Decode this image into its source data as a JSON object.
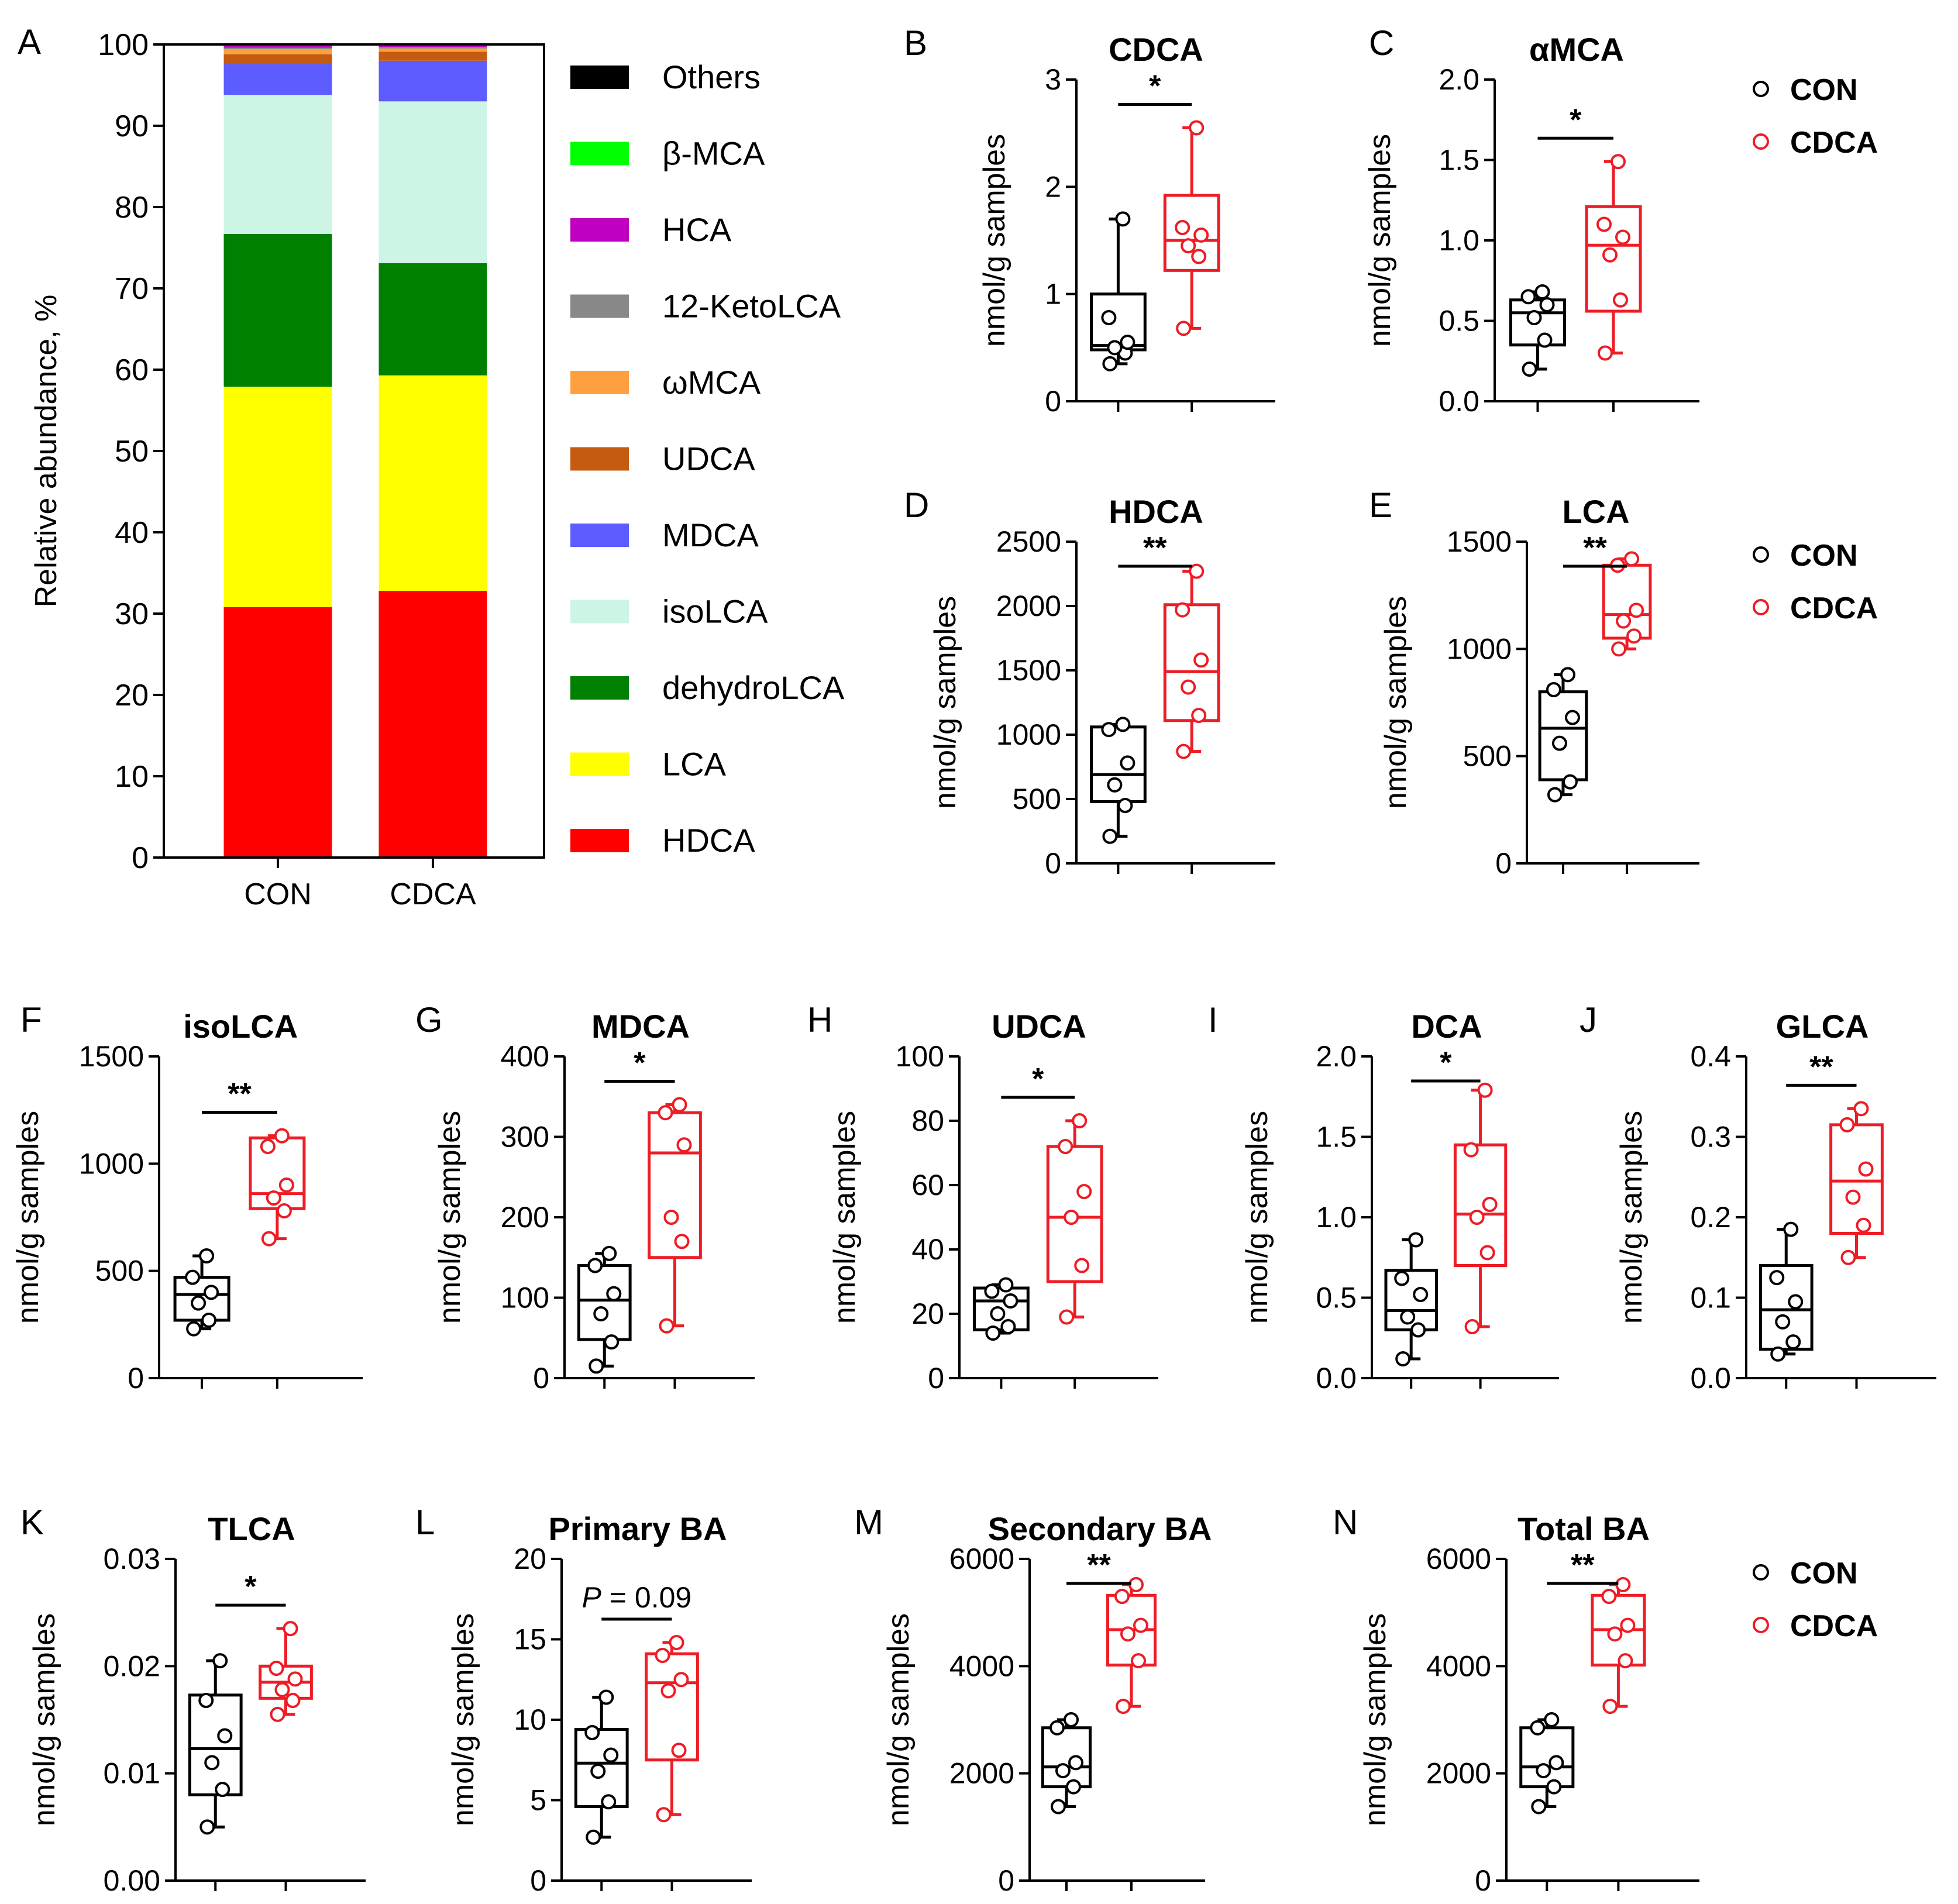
{
  "figure": {
    "ylabel_common": "nmol/g samples",
    "group_names": [
      "CON",
      "CDCA"
    ],
    "colors": {
      "CON": "#000000",
      "CDCA": "#ee1c25"
    }
  },
  "chart_data": [
    {
      "panel": "A",
      "type": "bar",
      "stacked": true,
      "title": "",
      "ylabel": "Relative abundance, %",
      "ylim": [
        0,
        100
      ],
      "yticks": [
        0,
        10,
        20,
        30,
        40,
        50,
        60,
        70,
        80,
        90,
        100
      ],
      "categories": [
        "CON",
        "CDCA"
      ],
      "series": [
        {
          "name": "HDCA",
          "color": "#ff0000",
          "values": [
            30.8,
            32.8
          ]
        },
        {
          "name": "LCA",
          "color": "#ffff00",
          "values": [
            27.1,
            26.5
          ]
        },
        {
          "name": "dehydroLCA",
          "color": "#008000",
          "values": [
            18.8,
            13.8
          ]
        },
        {
          "name": "isoLCA",
          "color": "#ccf5e6",
          "values": [
            17.1,
            19.9
          ]
        },
        {
          "name": "MDCA",
          "color": "#5c5cff",
          "values": [
            3.8,
            5.0
          ]
        },
        {
          "name": "UDCA",
          "color": "#c55a11",
          "values": [
            1.2,
            1.1
          ]
        },
        {
          "name": "ωMCA",
          "color": "#ffa040",
          "values": [
            0.6,
            0.4
          ]
        },
        {
          "name": "12-KetoLCA",
          "color": "#888888",
          "values": [
            0.2,
            0.2
          ]
        },
        {
          "name": "HCA",
          "color": "#c000c0",
          "values": [
            0.2,
            0.1
          ]
        },
        {
          "name": "β-MCA",
          "color": "#00ff00",
          "values": [
            0.1,
            0.1
          ]
        },
        {
          "name": "Others",
          "color": "#000000",
          "values": [
            0.1,
            0.1
          ]
        }
      ],
      "legend_order": [
        "Others",
        "β-MCA",
        "HCA",
        "12-KetoLCA",
        "ωMCA",
        "UDCA",
        "MDCA",
        "isoLCA",
        "dehydroLCA",
        "LCA",
        "HDCA"
      ]
    },
    {
      "panel": "B",
      "type": "box",
      "title": "CDCA",
      "ylabel": "nmol/g samples",
      "ylim": [
        0,
        3
      ],
      "yticks": [
        0,
        1,
        2,
        3
      ],
      "ytick_labels": [
        "0",
        "1",
        "2",
        "3"
      ],
      "groups": [
        {
          "name": "CON",
          "min": 0.35,
          "q1": 0.48,
          "median": 0.52,
          "q3": 1.0,
          "max": 1.7,
          "points": [
            0.35,
            0.45,
            0.5,
            0.55,
            0.78,
            1.7
          ]
        },
        {
          "name": "CDCA",
          "min": 0.68,
          "q1": 1.22,
          "median": 1.5,
          "q3": 1.92,
          "max": 2.55,
          "points": [
            0.68,
            1.35,
            1.45,
            1.55,
            1.62,
            2.55
          ]
        }
      ],
      "significance": "*",
      "legend": false
    },
    {
      "panel": "C",
      "type": "box",
      "title": "αMCA",
      "ylabel": "nmol/g samples",
      "ylim": [
        0,
        2
      ],
      "yticks": [
        0,
        0.5,
        1,
        1.5,
        2
      ],
      "ytick_labels": [
        "0.0",
        "0.5",
        "1.0",
        "1.5",
        "2.0"
      ],
      "groups": [
        {
          "name": "CON",
          "min": 0.2,
          "q1": 0.35,
          "median": 0.55,
          "q3": 0.63,
          "max": 0.68,
          "points": [
            0.2,
            0.38,
            0.52,
            0.6,
            0.65,
            0.68
          ]
        },
        {
          "name": "CDCA",
          "min": 0.3,
          "q1": 0.56,
          "median": 0.97,
          "q3": 1.21,
          "max": 1.49,
          "points": [
            0.3,
            0.63,
            0.91,
            1.02,
            1.1,
            1.49
          ]
        }
      ],
      "significance": "*",
      "legend": true
    },
    {
      "panel": "D",
      "type": "box",
      "title": "HDCA",
      "ylabel": "nmol/g samples",
      "ylim": [
        0,
        2500
      ],
      "yticks": [
        0,
        500,
        1000,
        1500,
        2000,
        2500
      ],
      "ytick_labels": [
        "0",
        "500",
        "1000",
        "1500",
        "2000",
        "2500"
      ],
      "groups": [
        {
          "name": "CON",
          "min": 210,
          "q1": 480,
          "median": 690,
          "q3": 1060,
          "max": 1080,
          "points": [
            210,
            450,
            610,
            780,
            1040,
            1080
          ]
        },
        {
          "name": "CDCA",
          "min": 870,
          "q1": 1110,
          "median": 1490,
          "q3": 2010,
          "max": 2270,
          "points": [
            870,
            1150,
            1370,
            1580,
            1970,
            2270
          ]
        }
      ],
      "significance": "**",
      "legend": false
    },
    {
      "panel": "E",
      "type": "box",
      "title": "LCA",
      "ylabel": "nmol/g samples",
      "ylim": [
        0,
        1500
      ],
      "yticks": [
        0,
        500,
        1000,
        1500
      ],
      "ytick_labels": [
        "0",
        "500",
        "1000",
        "1500"
      ],
      "groups": [
        {
          "name": "CON",
          "min": 320,
          "q1": 390,
          "median": 630,
          "q3": 800,
          "max": 880,
          "points": [
            320,
            380,
            560,
            680,
            810,
            880
          ]
        },
        {
          "name": "CDCA",
          "min": 1000,
          "q1": 1050,
          "median": 1160,
          "q3": 1390,
          "max": 1420,
          "points": [
            1000,
            1060,
            1130,
            1180,
            1390,
            1420
          ]
        }
      ],
      "significance": "**",
      "legend": true
    },
    {
      "panel": "F",
      "type": "box",
      "title": "isoLCA",
      "ylabel": "nmol/g samples",
      "ylim": [
        0,
        1500
      ],
      "yticks": [
        0,
        500,
        1000,
        1500
      ],
      "ytick_labels": [
        "0",
        "500",
        "1000",
        "1500"
      ],
      "groups": [
        {
          "name": "CON",
          "min": 230,
          "q1": 270,
          "median": 390,
          "q3": 470,
          "max": 570,
          "points": [
            230,
            270,
            350,
            400,
            470,
            570
          ]
        },
        {
          "name": "CDCA",
          "min": 650,
          "q1": 790,
          "median": 860,
          "q3": 1120,
          "max": 1130,
          "points": [
            650,
            780,
            840,
            900,
            1080,
            1130
          ]
        }
      ],
      "significance": "**",
      "legend": false
    },
    {
      "panel": "G",
      "type": "box",
      "title": "MDCA",
      "ylabel": "nmol/g samples",
      "ylim": [
        0,
        400
      ],
      "yticks": [
        0,
        100,
        200,
        300,
        400
      ],
      "ytick_labels": [
        "0",
        "100",
        "200",
        "300",
        "400"
      ],
      "groups": [
        {
          "name": "CON",
          "min": 15,
          "q1": 48,
          "median": 97,
          "q3": 140,
          "max": 155,
          "points": [
            15,
            45,
            80,
            105,
            140,
            155
          ]
        },
        {
          "name": "CDCA",
          "min": 65,
          "q1": 150,
          "median": 280,
          "q3": 330,
          "max": 340,
          "points": [
            65,
            170,
            200,
            290,
            330,
            340
          ]
        }
      ],
      "significance": "*",
      "legend": false
    },
    {
      "panel": "H",
      "type": "box",
      "title": "UDCA",
      "ylabel": "nmol/g samples",
      "ylim": [
        0,
        100
      ],
      "yticks": [
        0,
        20,
        40,
        60,
        80,
        100
      ],
      "ytick_labels": [
        "0",
        "20",
        "40",
        "60",
        "80",
        "100"
      ],
      "groups": [
        {
          "name": "CON",
          "min": 14,
          "q1": 15,
          "median": 24,
          "q3": 28,
          "max": 29,
          "points": [
            14,
            16,
            20,
            24,
            27,
            29
          ]
        },
        {
          "name": "CDCA",
          "min": 19,
          "q1": 30,
          "median": 50,
          "q3": 72,
          "max": 80,
          "points": [
            19,
            35,
            50,
            58,
            72,
            80
          ]
        }
      ],
      "significance": "*",
      "legend": false
    },
    {
      "panel": "I",
      "type": "box",
      "title": "DCA",
      "ylabel": "nmol/g samples",
      "ylim": [
        0,
        2
      ],
      "yticks": [
        0,
        0.5,
        1,
        1.5,
        2
      ],
      "ytick_labels": [
        "0.0",
        "0.5",
        "1.0",
        "1.5",
        "2.0"
      ],
      "groups": [
        {
          "name": "CON",
          "min": 0.12,
          "q1": 0.3,
          "median": 0.42,
          "q3": 0.67,
          "max": 0.86,
          "points": [
            0.12,
            0.3,
            0.38,
            0.52,
            0.62,
            0.86
          ]
        },
        {
          "name": "CDCA",
          "min": 0.32,
          "q1": 0.7,
          "median": 1.02,
          "q3": 1.45,
          "max": 1.79,
          "points": [
            0.32,
            0.78,
            1.0,
            1.08,
            1.42,
            1.79
          ]
        }
      ],
      "significance": "*",
      "legend": false
    },
    {
      "panel": "J",
      "type": "box",
      "title": "GLCA",
      "ylabel": "nmol/g samples",
      "ylim": [
        0,
        0.4
      ],
      "yticks": [
        0,
        0.1,
        0.2,
        0.3,
        0.4
      ],
      "ytick_labels": [
        "0.0",
        "0.1",
        "0.2",
        "0.3",
        "0.4"
      ],
      "groups": [
        {
          "name": "CON",
          "min": 0.03,
          "q1": 0.036,
          "median": 0.085,
          "q3": 0.14,
          "max": 0.185,
          "points": [
            0.03,
            0.045,
            0.07,
            0.095,
            0.125,
            0.185
          ]
        },
        {
          "name": "CDCA",
          "min": 0.15,
          "q1": 0.18,
          "median": 0.245,
          "q3": 0.315,
          "max": 0.335,
          "points": [
            0.15,
            0.19,
            0.225,
            0.26,
            0.315,
            0.335
          ]
        }
      ],
      "significance": "**",
      "legend": false
    },
    {
      "panel": "K",
      "type": "box",
      "title": "TLCA",
      "ylabel": "nmol/g samples",
      "ylim": [
        0,
        0.03
      ],
      "yticks": [
        0,
        0.01,
        0.02,
        0.03
      ],
      "ytick_labels": [
        "0.00",
        "0.01",
        "0.02",
        "0.03"
      ],
      "groups": [
        {
          "name": "CON",
          "min": 0.005,
          "q1": 0.008,
          "median": 0.0123,
          "q3": 0.0173,
          "max": 0.0205,
          "points": [
            0.005,
            0.0085,
            0.011,
            0.0135,
            0.0168,
            0.0205
          ]
        },
        {
          "name": "CDCA",
          "min": 0.0155,
          "q1": 0.017,
          "median": 0.0185,
          "q3": 0.02,
          "max": 0.0235,
          "points": [
            0.0155,
            0.0168,
            0.0178,
            0.0188,
            0.0198,
            0.0235
          ]
        }
      ],
      "significance": "*",
      "legend": false
    },
    {
      "panel": "L",
      "type": "box",
      "title": "Primary BA",
      "ylabel": "nmol/g samples",
      "ylim": [
        0,
        20
      ],
      "yticks": [
        0,
        5,
        10,
        15,
        20
      ],
      "ytick_labels": [
        "0",
        "5",
        "10",
        "15",
        "20"
      ],
      "groups": [
        {
          "name": "CON",
          "min": 2.7,
          "q1": 4.6,
          "median": 7.3,
          "q3": 9.4,
          "max": 11.4,
          "points": [
            2.7,
            4.9,
            6.8,
            7.8,
            9.2,
            11.4
          ]
        },
        {
          "name": "CDCA",
          "min": 4.1,
          "q1": 7.5,
          "median": 12.3,
          "q3": 14.1,
          "max": 14.8,
          "points": [
            4.1,
            8.1,
            11.8,
            12.5,
            14.0,
            14.8
          ]
        }
      ],
      "significance": "= 0.09",
      "significance_prefix": "P",
      "legend": false
    },
    {
      "panel": "M",
      "type": "box",
      "title": "Secondary BA",
      "ylabel": "nmol/g samples",
      "ylim": [
        0,
        6000
      ],
      "yticks": [
        0,
        2000,
        4000,
        6000
      ],
      "ytick_labels": [
        "0",
        "2000",
        "4000",
        "6000"
      ],
      "groups": [
        {
          "name": "CON",
          "min": 1380,
          "q1": 1750,
          "median": 2120,
          "q3": 2850,
          "max": 3000,
          "points": [
            1380,
            1750,
            2050,
            2200,
            2850,
            3000
          ]
        },
        {
          "name": "CDCA",
          "min": 3250,
          "q1": 4020,
          "median": 4680,
          "q3": 5320,
          "max": 5520,
          "points": [
            3250,
            4100,
            4600,
            4760,
            5300,
            5520
          ]
        }
      ],
      "significance": "**",
      "legend": false
    },
    {
      "panel": "N",
      "type": "box",
      "title": "Total BA",
      "ylabel": "nmol/g samples",
      "ylim": [
        0,
        6000
      ],
      "yticks": [
        0,
        2000,
        4000,
        6000
      ],
      "ytick_labels": [
        "0",
        "2000",
        "4000",
        "6000"
      ],
      "groups": [
        {
          "name": "CON",
          "min": 1380,
          "q1": 1750,
          "median": 2120,
          "q3": 2850,
          "max": 3000,
          "points": [
            1380,
            1750,
            2050,
            2200,
            2850,
            3000
          ]
        },
        {
          "name": "CDCA",
          "min": 3250,
          "q1": 4020,
          "median": 4680,
          "q3": 5320,
          "max": 5520,
          "points": [
            3250,
            4100,
            4600,
            4760,
            5300,
            5520
          ]
        }
      ],
      "significance": "**",
      "legend": true
    }
  ]
}
